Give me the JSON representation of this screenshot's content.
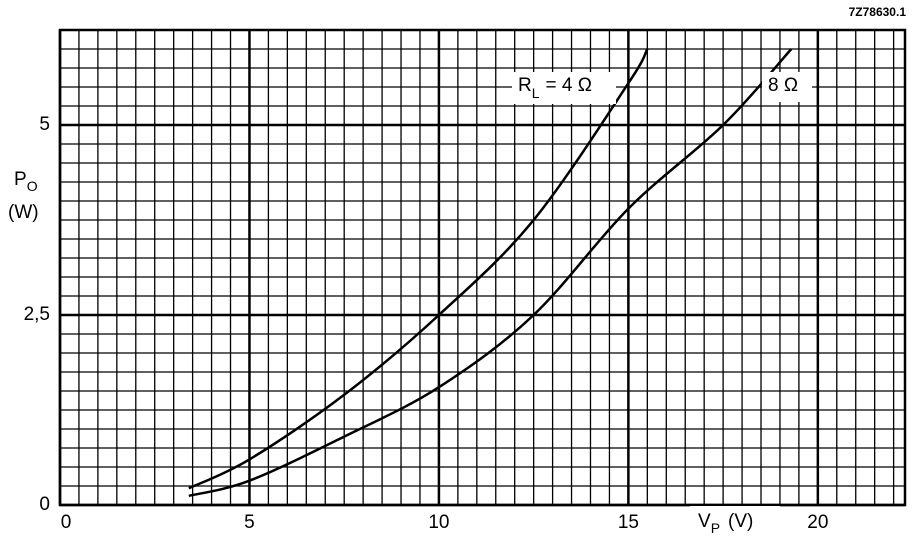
{
  "chart_data": {
    "type": "line",
    "code": "7Z78630.1",
    "xlabel": {
      "main": "V",
      "sub": "P",
      "unit": "(V)"
    },
    "ylabel": {
      "main": "P",
      "sub": "O",
      "unit": "(W)"
    },
    "xlim": [
      0,
      22.3
    ],
    "ylim": [
      0,
      6.25
    ],
    "xticks": [
      0,
      5,
      10,
      15,
      20
    ],
    "yticks": [
      0,
      {
        "value": 2.5,
        "label": "2,5"
      },
      5
    ],
    "grid": true,
    "minor_grid": {
      "x": 0.5,
      "y": 0.25
    },
    "series": [
      {
        "label": {
          "main": "R",
          "sub": "L",
          "rest": "= 4 Ω"
        },
        "color": "#000000",
        "x": [
          3.4,
          5,
          7.5,
          10,
          12.5,
          15,
          15.5
        ],
        "values": [
          0.22,
          0.6,
          1.45,
          2.5,
          3.75,
          5.55,
          6.0
        ]
      },
      {
        "label": {
          "rest": "8 Ω"
        },
        "color": "#000000",
        "x": [
          3.4,
          5,
          7.5,
          10,
          12.5,
          15,
          17.5,
          19.3
        ],
        "values": [
          0.12,
          0.32,
          0.9,
          1.55,
          2.5,
          3.9,
          5.0,
          6.0
        ]
      }
    ]
  }
}
